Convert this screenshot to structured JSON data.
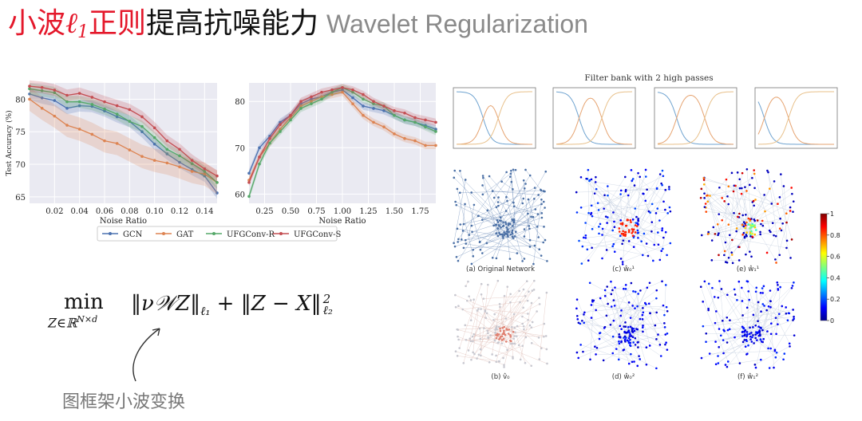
{
  "title": {
    "red_prefix": "小波",
    "math_symbol": "ℓ",
    "math_sub": "1",
    "red_suffix": "正则",
    "black_part": "提高抗噪能力",
    "gray_part": "Wavelet Regularization"
  },
  "chart_data": [
    {
      "type": "line",
      "ylabel": "Test Accuracy (%)",
      "xlabel": "Noise Ratio",
      "x_ticks": [
        "0.02",
        "0.04",
        "0.06",
        "0.08",
        "0.10",
        "0.12",
        "0.14"
      ],
      "y_ticks": [
        "65",
        "70",
        "75",
        "80"
      ],
      "xlim": [
        0.0,
        0.15
      ],
      "ylim": [
        64,
        82.5
      ],
      "x": [
        0.0,
        0.01,
        0.02,
        0.03,
        0.04,
        0.05,
        0.06,
        0.07,
        0.08,
        0.09,
        0.1,
        0.11,
        0.12,
        0.13,
        0.14,
        0.15
      ],
      "series": [
        {
          "name": "GCN",
          "color": "#4c72b0",
          "values": [
            80.8,
            80.2,
            79.8,
            78.6,
            79.0,
            78.9,
            78.2,
            77.3,
            76.6,
            75.0,
            73.1,
            71.6,
            70.3,
            69.2,
            68.2,
            65.6
          ]
        },
        {
          "name": "GAT",
          "color": "#dd8452",
          "values": [
            80.0,
            78.6,
            77.4,
            76.0,
            75.4,
            74.6,
            73.6,
            73.2,
            72.2,
            71.2,
            70.6,
            70.2,
            69.6,
            68.9,
            68.5,
            67.2
          ]
        },
        {
          "name": "UFGConv-R",
          "color": "#55a868",
          "values": [
            81.6,
            81.3,
            81.0,
            79.6,
            79.6,
            79.2,
            78.5,
            77.7,
            76.6,
            75.8,
            74.1,
            72.3,
            71.3,
            70.1,
            68.9,
            67.2
          ]
        },
        {
          "name": "UFGConv-S",
          "color": "#c44e52",
          "values": [
            82.0,
            81.8,
            81.4,
            80.6,
            80.9,
            80.3,
            79.6,
            79.0,
            78.4,
            77.3,
            75.6,
            73.6,
            72.3,
            70.6,
            69.3,
            68.2
          ]
        }
      ]
    },
    {
      "type": "line",
      "xlabel": "Noise Ratio",
      "x_ticks": [
        "0.25",
        "0.50",
        "0.75",
        "1.00",
        "1.25",
        "1.50",
        "1.75"
      ],
      "y_ticks": [
        "60",
        "70",
        "80"
      ],
      "xlim": [
        0.1,
        1.9
      ],
      "ylim": [
        58,
        84
      ],
      "x": [
        0.1,
        0.2,
        0.3,
        0.4,
        0.5,
        0.6,
        0.7,
        0.8,
        0.9,
        1.0,
        1.1,
        1.2,
        1.3,
        1.4,
        1.5,
        1.6,
        1.7,
        1.8,
        1.9
      ],
      "series": [
        {
          "name": "GCN",
          "color": "#4c72b0",
          "values": [
            64.5,
            70.0,
            72.5,
            75.5,
            77.0,
            79.5,
            80.5,
            81.0,
            82.0,
            82.5,
            80.8,
            79.0,
            78.5,
            78.0,
            77.0,
            76.0,
            75.5,
            74.8,
            74.0
          ]
        },
        {
          "name": "GAT",
          "color": "#dd8452",
          "values": [
            63.0,
            68.0,
            71.0,
            74.0,
            76.5,
            79.0,
            80.0,
            81.0,
            81.5,
            82.0,
            79.5,
            77.0,
            75.5,
            74.5,
            73.0,
            72.0,
            71.5,
            70.5,
            70.5
          ]
        },
        {
          "name": "UFGConv-R",
          "color": "#55a868",
          "values": [
            59.5,
            66.5,
            71.0,
            73.5,
            76.0,
            78.5,
            79.5,
            80.5,
            82.0,
            83.0,
            82.0,
            80.5,
            79.5,
            79.0,
            77.0,
            76.0,
            75.5,
            74.5,
            73.5
          ]
        },
        {
          "name": "UFGConv-S",
          "color": "#c44e52",
          "values": [
            62.5,
            68.0,
            72.0,
            75.0,
            77.0,
            80.0,
            81.0,
            82.0,
            82.5,
            83.0,
            82.5,
            81.5,
            80.0,
            79.0,
            78.0,
            77.5,
            76.5,
            76.0,
            75.5
          ]
        }
      ]
    }
  ],
  "legend": [
    "GCN",
    "GAT",
    "UFGConv-R",
    "UFGConv-S"
  ],
  "filter_bank": {
    "title": "Filter bank with 2 high passes"
  },
  "networks": {
    "captions": [
      "(a) Original Network",
      "(c) ŵ₀¹",
      "(e) ŵ₁¹",
      "(b) v̂₀",
      "(d) ŵ₀²",
      "(f) ŵ₁²"
    ]
  },
  "colorbar": {
    "ticks": [
      "1",
      "0.8",
      "0.6",
      "0.4",
      "0.2",
      "0"
    ]
  },
  "equation": {
    "min": "min",
    "sub": "Z∈ℝ",
    "sub_sup": "N×d",
    "body": "‖ν𝒲Z‖",
    "sub1": "ℓ₁",
    "plus": " + ‖Z − X‖",
    "sub2": "ℓ₂",
    "sup2": "2"
  },
  "annotation": "图框架小波变换"
}
